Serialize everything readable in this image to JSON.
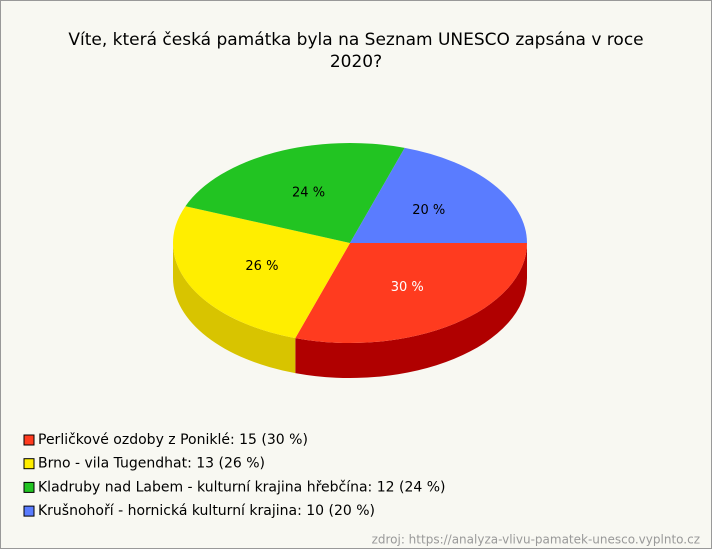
{
  "chart_data": {
    "type": "pie",
    "title": [
      "Víte, která česká památka byla na Seznam UNESCO zapsána v roce",
      "2020?"
    ],
    "categories": [
      "Perličkové ozdoby z Poniklé: 15 (30 %)",
      "Brno - vila Tugendhat: 13 (26 %)",
      "Kladruby nad Labem - kulturní krajina hřebčína: 12 (24 %)",
      "Krušnohoří - hornická kulturní krajina: 10 (20 %)"
    ],
    "values": [
      30,
      26,
      24,
      20
    ],
    "value_labels": [
      "30 %",
      "26 %",
      "24 %",
      "20 %"
    ],
    "colors": [
      "#ff3b1f",
      "#ffee00",
      "#22c422",
      "#5a7cff"
    ],
    "side_colors": [
      "#b00000",
      "#d8c400",
      "#1a941a",
      "#3a55c0"
    ],
    "label_colors": [
      "#ffffff",
      "#000000",
      "#000000",
      "#000000"
    ],
    "source": "zdroj: https://analyza-vlivu-pamatek-unesco.vyplnto.cz"
  }
}
